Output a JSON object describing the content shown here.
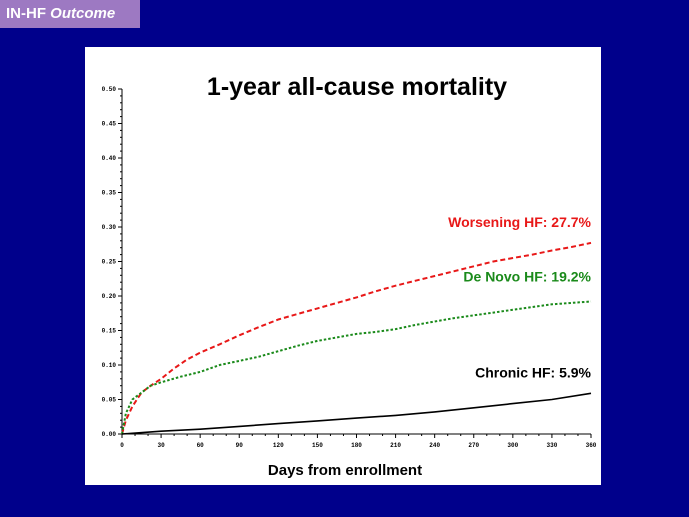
{
  "header": {
    "tag_prefix": "IN-HF",
    "tag_italic": "Outcome"
  },
  "colors": {
    "background": "#00008b",
    "tag_background": "#9d79c2",
    "panel": "#ffffff"
  },
  "chart_data": {
    "type": "line",
    "title": "1-year all-cause mortality",
    "xlabel": "Days from enrollment",
    "ylabel": "",
    "xlim": [
      0,
      360
    ],
    "ylim": [
      0,
      0.5
    ],
    "x_ticks": [
      "0",
      "30",
      "60",
      "90",
      "120",
      "150",
      "180",
      "210",
      "240",
      "270",
      "300",
      "330",
      "360"
    ],
    "y_ticks": [
      "0.00",
      "0.05",
      "0.10",
      "0.15",
      "0.20",
      "0.25",
      "0.30",
      "0.35",
      "0.40",
      "0.45",
      "0.50"
    ],
    "grid": false,
    "series": [
      {
        "name": "Worsening HF",
        "label": "Worsening HF: 27.7%",
        "color": "#e81818",
        "style": "dashed",
        "x": [
          0,
          3,
          8,
          15,
          22,
          30,
          40,
          50,
          60,
          75,
          90,
          105,
          120,
          135,
          150,
          165,
          180,
          195,
          210,
          225,
          240,
          255,
          270,
          285,
          300,
          315,
          330,
          345,
          360
        ],
        "y": [
          0,
          0.02,
          0.04,
          0.06,
          0.07,
          0.08,
          0.095,
          0.108,
          0.118,
          0.13,
          0.143,
          0.155,
          0.166,
          0.174,
          0.182,
          0.19,
          0.198,
          0.207,
          0.215,
          0.222,
          0.229,
          0.236,
          0.243,
          0.25,
          0.255,
          0.26,
          0.266,
          0.271,
          0.277
        ]
      },
      {
        "name": "De Novo HF",
        "label": "De Novo HF: 19.2%",
        "color": "#1a8a1a",
        "style": "dotted",
        "x": [
          0,
          3,
          8,
          15,
          22,
          30,
          45,
          60,
          75,
          90,
          105,
          120,
          135,
          150,
          165,
          180,
          195,
          210,
          225,
          240,
          255,
          270,
          285,
          300,
          315,
          330,
          345,
          360
        ],
        "y": [
          0,
          0.03,
          0.05,
          0.06,
          0.07,
          0.075,
          0.083,
          0.09,
          0.1,
          0.106,
          0.112,
          0.12,
          0.128,
          0.135,
          0.14,
          0.145,
          0.148,
          0.152,
          0.158,
          0.163,
          0.168,
          0.172,
          0.176,
          0.18,
          0.184,
          0.188,
          0.19,
          0.192
        ]
      },
      {
        "name": "Chronic HF",
        "label": "Chronic HF: 5.9%",
        "color": "#000000",
        "style": "solid",
        "x": [
          0,
          30,
          60,
          90,
          120,
          150,
          180,
          210,
          240,
          270,
          300,
          330,
          360
        ],
        "y": [
          0,
          0.004,
          0.007,
          0.011,
          0.015,
          0.019,
          0.023,
          0.027,
          0.032,
          0.038,
          0.044,
          0.05,
          0.059
        ]
      }
    ]
  }
}
